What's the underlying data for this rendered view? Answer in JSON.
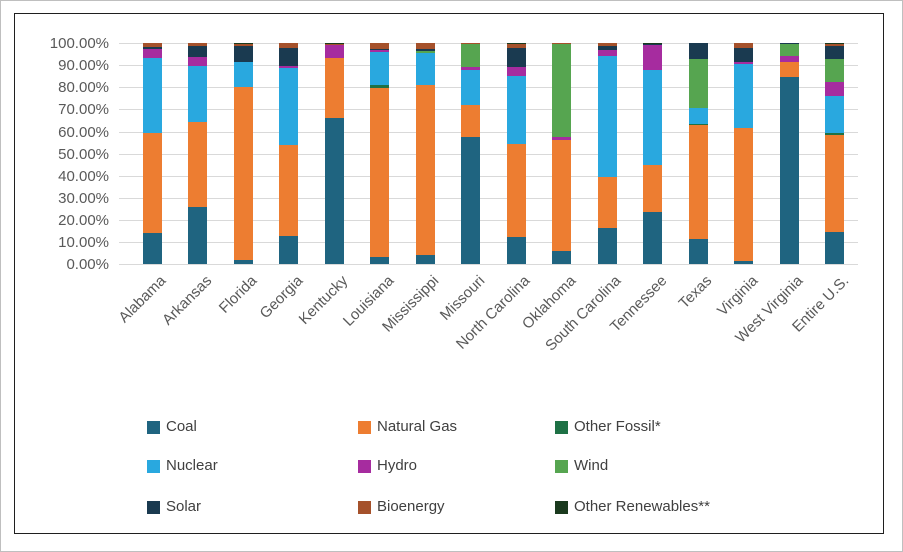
{
  "chart_data": {
    "type": "bar",
    "subtype": "100-percent-stacked-column",
    "title": "",
    "xlabel": "",
    "ylabel": "",
    "ylim": [
      0,
      100
    ],
    "grid": true,
    "legend_position": "bottom",
    "y_ticks": [
      "100.00%",
      "90.00%",
      "80.00%",
      "70.00%",
      "60.00%",
      "50.00%",
      "40.00%",
      "30.00%",
      "20.00%",
      "10.00%",
      "0.00%"
    ],
    "categories": [
      "Alabama",
      "Arkansas",
      "Florida",
      "Georgia",
      "Kentucky",
      "Louisiana",
      "Mississippi",
      "Missouri",
      "North Carolina",
      "Oklahoma",
      "South Carolina",
      "Tennessee",
      "Texas",
      "Virginia",
      "West Virginia",
      "Entire U.S."
    ],
    "series": [
      {
        "name": "Coal",
        "color": "#1F6480",
        "values": [
          14.0,
          26.1,
          1.9,
          12.8,
          66.3,
          3.5,
          4.0,
          57.5,
          12.5,
          6.0,
          16.5,
          23.5,
          11.3,
          1.5,
          84.7,
          14.7
        ]
      },
      {
        "name": "Natural Gas",
        "color": "#ED7D31",
        "values": [
          45.2,
          38.3,
          78.3,
          41.2,
          27.0,
          76.0,
          76.9,
          14.3,
          42.0,
          50.0,
          23.0,
          21.5,
          51.5,
          60.0,
          6.5,
          43.8
        ]
      },
      {
        "name": "Other Fossil*",
        "color": "#1E7145",
        "values": [
          0,
          0,
          0,
          0,
          0,
          1.5,
          0,
          0,
          0,
          0,
          0,
          0,
          0.6,
          0,
          0,
          1.0
        ]
      },
      {
        "name": "Nuclear",
        "color": "#29A8DF",
        "values": [
          34.0,
          25.1,
          11.3,
          34.5,
          0,
          15.0,
          14.7,
          15.8,
          30.8,
          0,
          54.6,
          42.6,
          7.2,
          28.8,
          0,
          16.5
        ]
      },
      {
        "name": "Hydro",
        "color": "#A62C9F",
        "values": [
          3.9,
          4.1,
          0,
          1.0,
          5.9,
          1.0,
          0,
          1.5,
          3.8,
          1.7,
          2.6,
          11.3,
          0,
          1.2,
          3.0,
          6.3
        ]
      },
      {
        "name": "Wind",
        "color": "#56A550",
        "values": [
          0,
          0,
          0,
          0,
          0,
          0,
          0.8,
          10.3,
          0,
          42.0,
          0,
          0,
          22.4,
          0,
          5.5,
          10.7
        ]
      },
      {
        "name": "Solar",
        "color": "#1A3A50",
        "values": [
          1.1,
          5.0,
          7.3,
          8.4,
          0,
          0.5,
          1.1,
          0,
          8.8,
          0,
          1.9,
          0.8,
          7.0,
          6.4,
          0.3,
          5.8
        ]
      },
      {
        "name": "Bioenergy",
        "color": "#A5512B",
        "values": [
          1.8,
          1.4,
          0.7,
          2.1,
          0.6,
          2.5,
          2.5,
          0.6,
          1.6,
          0.3,
          1.4,
          0,
          0,
          2.1,
          0,
          0.9
        ]
      },
      {
        "name": "Other Renewables**",
        "color": "#1A3A1E",
        "values": [
          0,
          0,
          0.5,
          0,
          0.2,
          0,
          0,
          0,
          0.5,
          0,
          0,
          0.3,
          0,
          0,
          0,
          0.3
        ]
      }
    ]
  },
  "layout_colors": {
    "gridline": "#d9d9d9",
    "axis_text": "#595959",
    "legend_text": "#404040",
    "frame_border": "#1f1f1f"
  }
}
